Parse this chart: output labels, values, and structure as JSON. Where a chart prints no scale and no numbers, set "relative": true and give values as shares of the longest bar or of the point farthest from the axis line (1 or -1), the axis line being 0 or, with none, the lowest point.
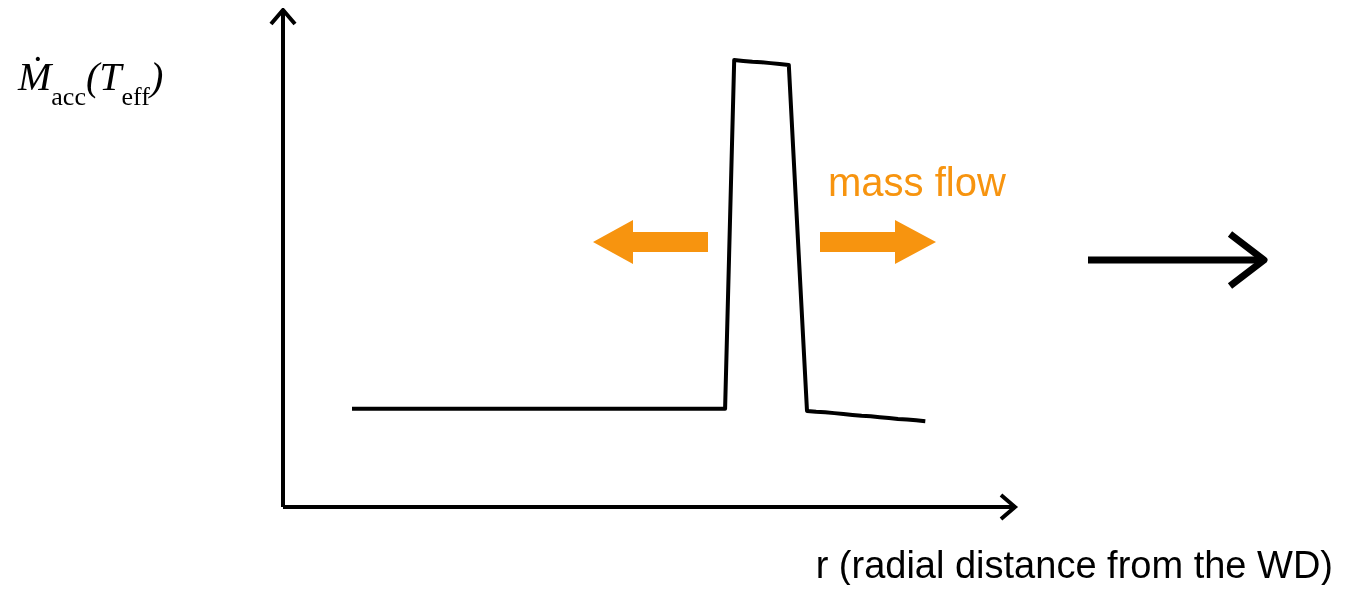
{
  "chart_data": {
    "type": "line",
    "relative": true,
    "ylabel": "Ṁ$_{acc}$(T$_{eff}$)",
    "xlabel": "r (radial distance from the WD)",
    "line_style": "solid",
    "categories": [
      null,
      null,
      null,
      null,
      null,
      null,
      null,
      null,
      null,
      null,
      null,
      null,
      null,
      null,
      null,
      null,
      null,
      null,
      null,
      null,
      null,
      null,
      null,
      null,
      null,
      null,
      null,
      null,
      null,
      null,
      null,
      null,
      null,
      null,
      null,
      null,
      null,
      null,
      null,
      null,
      null,
      null,
      null,
      null,
      null,
      null,
      null,
      null,
      null,
      null,
      null,
      null,
      null,
      null,
      null,
      null,
      null,
      null,
      null,
      null,
      null,
      null,
      null,
      null
    ],
    "series": [
      {
        "color": "#000000",
        "values": [
          0.22,
          0.22,
          0.22,
          0.22,
          0.22,
          0.22,
          0.22,
          0.22,
          0.22,
          0.22,
          0.22,
          0.22,
          0.22,
          0.22,
          0.22,
          0.22,
          0.22,
          0.22,
          0.22,
          0.22,
          0.22,
          0.22,
          0.22,
          0.22,
          0.22,
          0.22,
          0.22,
          0.22,
          0.22,
          0.22,
          0.22,
          0.22,
          0.22,
          0.22,
          0.22,
          0.22,
          0.22,
          0.22,
          0.22,
          0.22,
          0.22,
          0.22,
          1,
          0.998,
          0.996,
          0.995,
          0.993,
          0.991,
          0.989,
          0.6,
          0.215,
          0.213,
          0.212,
          0.21,
          0.208,
          0.206,
          0.204,
          0.203,
          0.201,
          0.199,
          0.197,
          0.196,
          0.194,
          0.192
        ]
      }
    ],
    "annotations": [
      "mass flow"
    ]
  }
}
